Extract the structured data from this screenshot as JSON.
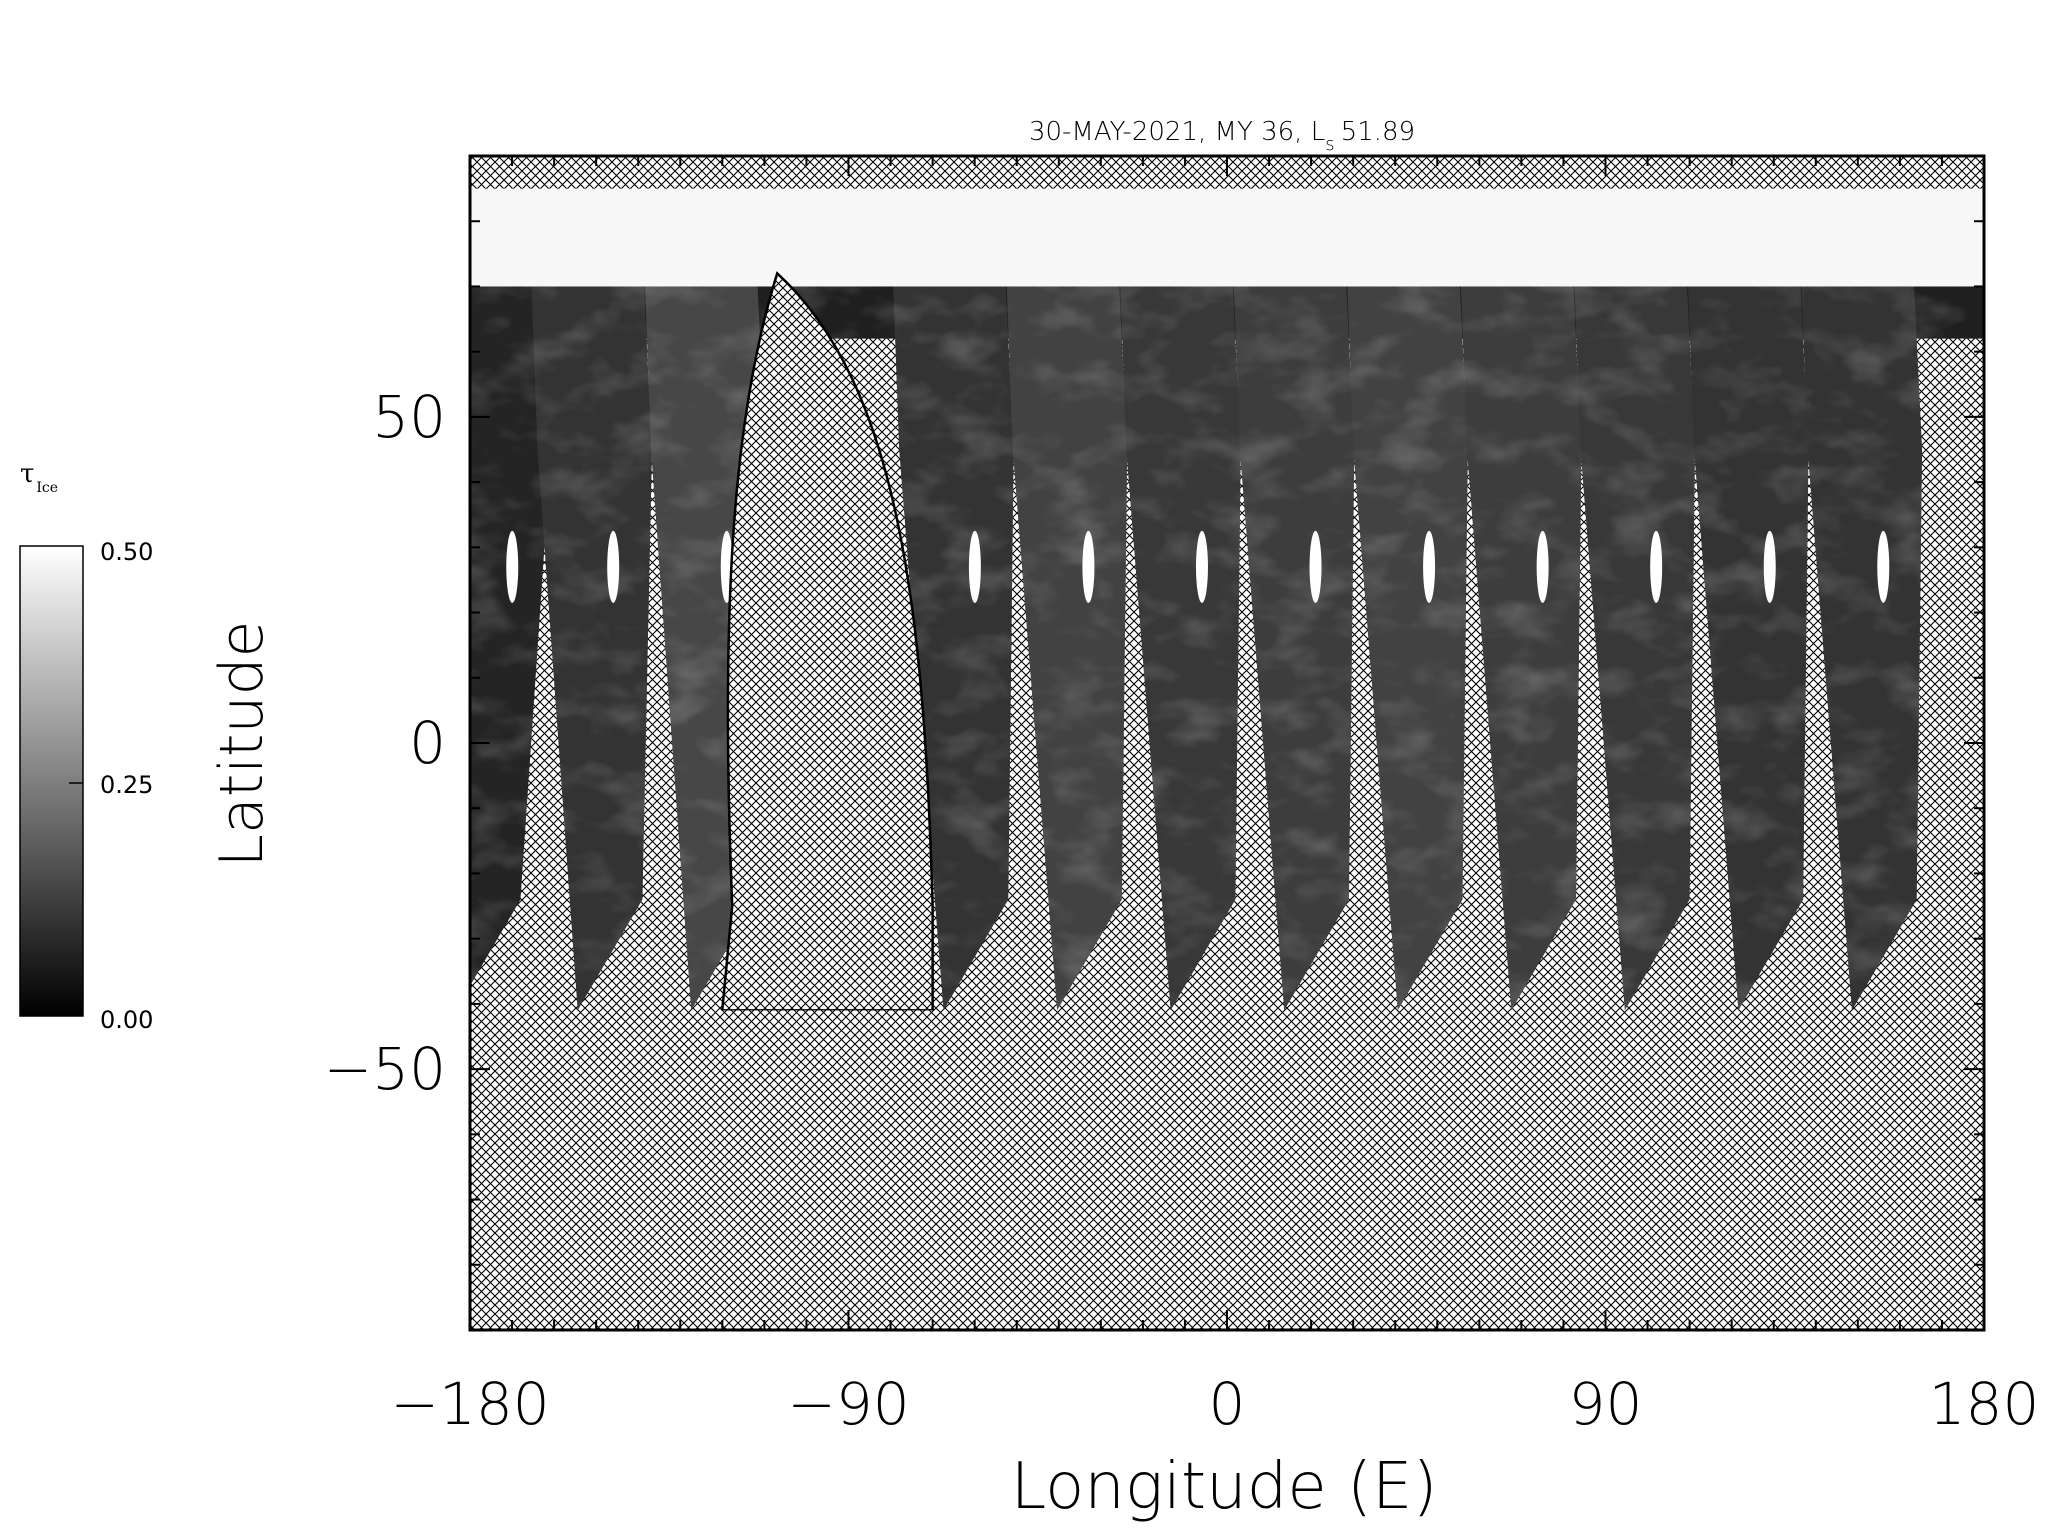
{
  "chart_data": {
    "type": "heatmap",
    "title": "30-MAY-2021, MY 36,  L",
    "title_subscript": "s",
    "title_value": "51.89",
    "xlabel": "Longitude (E)",
    "ylabel": "Latitude",
    "xlim": [
      -180,
      180
    ],
    "ylim": [
      -90,
      90
    ],
    "x_ticks": [
      -180,
      -90,
      0,
      90,
      180
    ],
    "x_tick_labels": [
      "−180",
      "−90",
      "0",
      "90",
      "180"
    ],
    "y_ticks": [
      50,
      0,
      -50
    ],
    "y_tick_labels": [
      "50",
      "0",
      "−50"
    ],
    "colorbar": {
      "label": "τ",
      "label_subscript": "Ice",
      "min": 0.0,
      "max": 0.5,
      "ticks": [
        0.5,
        0.25,
        0.0
      ],
      "tick_labels": [
        "0.50",
        "0.25",
        "0.00"
      ],
      "colormap": "grayscale (black = 0.00, white = 0.50)"
    },
    "missing_data_fill": "cross-hatch",
    "polar_cap": {
      "lat_from": 70,
      "lat_to": 85,
      "value": 0.5
    },
    "swaths": [
      {
        "lon_north": -176,
        "lon_south": -182,
        "value": 0.07
      },
      {
        "lon_north": -152,
        "lon_south": -153,
        "value": 0.1
      },
      {
        "lon_north": -125,
        "lon_south": -126,
        "value": 0.14
      },
      {
        "lon_north": -66,
        "lon_south": -66,
        "value": 0.1
      },
      {
        "lon_north": -39,
        "lon_south": -39,
        "value": 0.13
      },
      {
        "lon_north": -12,
        "lon_south": -12,
        "value": 0.11
      },
      {
        "lon_north": 15,
        "lon_south": 15,
        "value": 0.12
      },
      {
        "lon_north": 42,
        "lon_south": 42,
        "value": 0.13
      },
      {
        "lon_north": 69,
        "lon_south": 69,
        "value": 0.12
      },
      {
        "lon_north": 96,
        "lon_south": 96,
        "value": 0.11
      },
      {
        "lon_north": 123,
        "lon_south": 123,
        "value": 0.1
      },
      {
        "lon_north": 150,
        "lon_south": 150,
        "value": 0.1
      }
    ],
    "gap_wedge": {
      "lon_center": -101,
      "apex_lat": 72,
      "value": "no data"
    },
    "grid": false,
    "legend": "colorbar at left"
  }
}
